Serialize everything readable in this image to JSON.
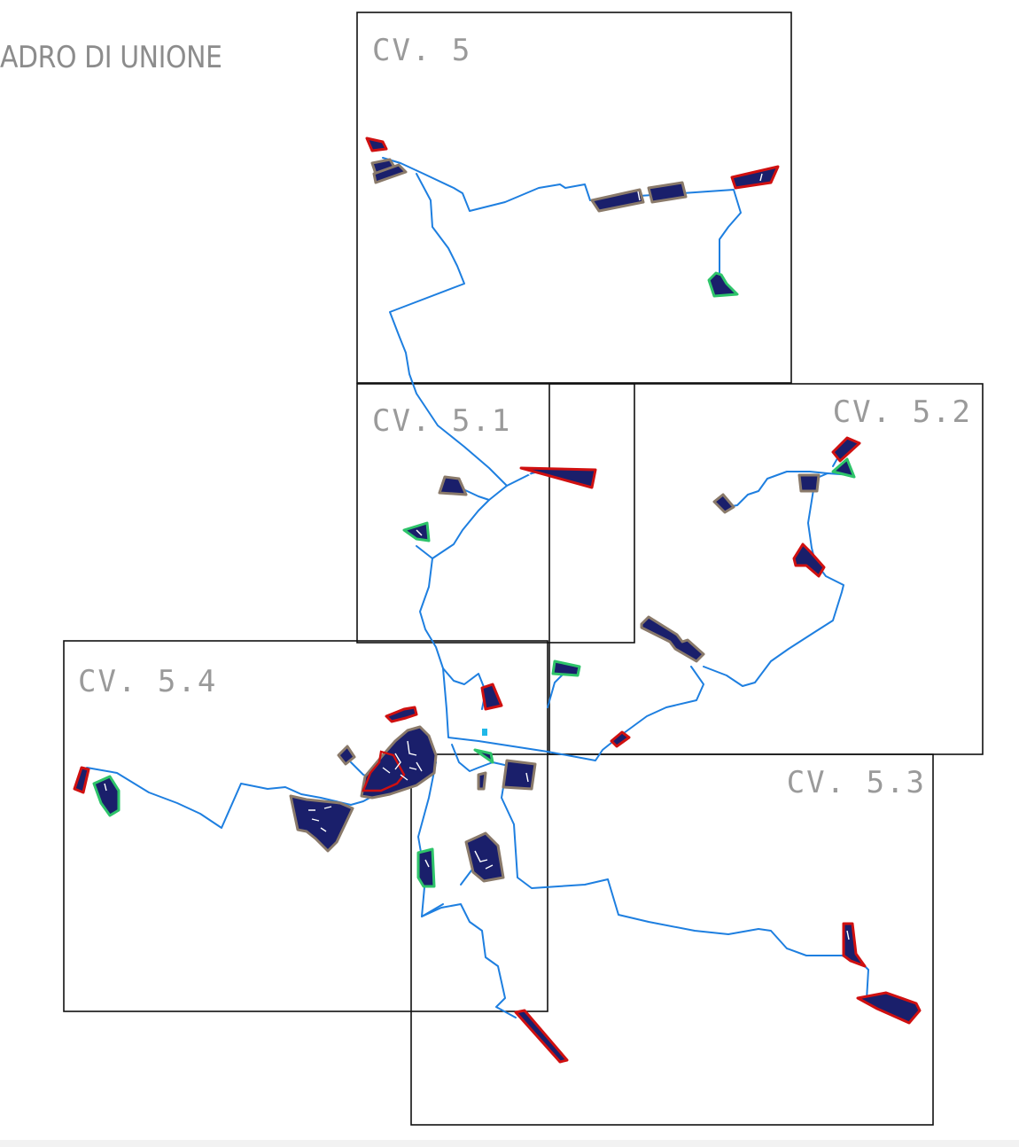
{
  "title": "ADRO DI UNIONE",
  "sheets": [
    {
      "id": "cv5",
      "label": "CV. 5"
    },
    {
      "id": "cv51",
      "label": "CV. 5.1"
    },
    {
      "id": "cv52",
      "label": "CV. 5.2"
    },
    {
      "id": "cv53",
      "label": "CV. 5.3"
    },
    {
      "id": "cv54",
      "label": "CV. 5.4"
    }
  ],
  "colors": {
    "frame": "#111111",
    "label": "#9a9a9a",
    "road": "#1e7fe0",
    "parcel_fill": "#1a1f6b",
    "border_red": "#d01010",
    "border_grey": "#8a7a6a",
    "border_green": "#2ec46a"
  }
}
